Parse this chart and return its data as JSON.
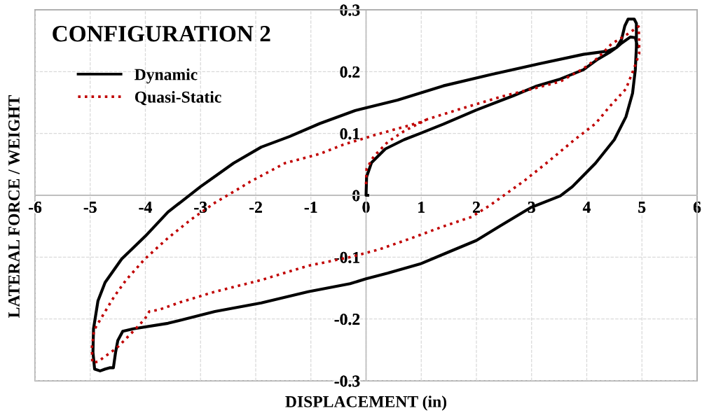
{
  "chart_data": {
    "type": "line",
    "title": "CONFIGURATION 2",
    "xlabel": "DISPLACEMENT (in)",
    "ylabel": "LATERAL FORCE / WEIGHT",
    "xlim": [
      -6,
      6
    ],
    "ylim": [
      -0.3,
      0.3
    ],
    "xticks": [
      -6,
      -5,
      -4,
      -3,
      -2,
      -1,
      0,
      1,
      2,
      3,
      4,
      5,
      6
    ],
    "yticks": [
      -0.3,
      -0.2,
      -0.1,
      0,
      0.1,
      0.2,
      0.3
    ],
    "grid": true,
    "legend": "top left",
    "marker": "none",
    "series": [
      {
        "name": "Dynamic",
        "color": "#000000",
        "line_style": "solid",
        "x": [
          0.03,
          0.0,
          0.01,
          0.1,
          0.35,
          0.69,
          0.98,
          1.4,
          2.0,
          2.67,
          3.1,
          3.52,
          3.94,
          4.2,
          4.41,
          4.54,
          4.63,
          4.69,
          4.75,
          4.86,
          4.9,
          4.9,
          4.88,
          4.83,
          4.71,
          4.5,
          4.16,
          3.74,
          3.52,
          2.98,
          2.42,
          2.0,
          1.49,
          0.98,
          0.39,
          0.0,
          -0.29,
          -1.05,
          -1.9,
          -2.74,
          -3.59,
          -4.22,
          -4.41,
          -4.5,
          -4.54,
          -4.58,
          -4.65,
          -4.73,
          -4.82,
          -4.92,
          -4.95,
          -4.94,
          -4.86,
          -4.73,
          -4.43,
          -4.0,
          -3.59,
          -3.0,
          -2.4,
          -1.9,
          -1.39,
          -0.84,
          -0.2,
          0.57,
          1.4,
          2.25,
          3.1,
          3.94,
          4.37,
          4.54,
          4.63,
          4.79,
          4.88,
          4.92
        ],
        "values": [
          0.0,
          0.0,
          0.03,
          0.053,
          0.075,
          0.09,
          0.1,
          0.115,
          0.138,
          0.161,
          0.177,
          0.188,
          0.203,
          0.22,
          0.231,
          0.239,
          0.252,
          0.274,
          0.285,
          0.285,
          0.278,
          0.24,
          0.203,
          0.165,
          0.127,
          0.09,
          0.052,
          0.014,
          -0.001,
          -0.02,
          -0.05,
          -0.073,
          -0.092,
          -0.111,
          -0.126,
          -0.135,
          -0.143,
          -0.156,
          -0.174,
          -0.188,
          -0.207,
          -0.216,
          -0.22,
          -0.235,
          -0.254,
          -0.279,
          -0.279,
          -0.281,
          -0.284,
          -0.281,
          -0.254,
          -0.216,
          -0.171,
          -0.141,
          -0.103,
          -0.066,
          -0.027,
          0.014,
          0.052,
          0.078,
          0.095,
          0.116,
          0.137,
          0.154,
          0.177,
          0.195,
          0.212,
          0.228,
          0.233,
          0.239,
          0.246,
          0.256,
          0.255,
          0.24
        ]
      },
      {
        "name": "Quasi-Static",
        "color": "#c00000",
        "line_style": "dotted",
        "x": [
          0.0,
          0.01,
          0.14,
          0.39,
          0.69,
          1.11,
          1.83,
          2.47,
          3.1,
          3.52,
          3.74,
          3.94,
          4.2,
          4.45,
          4.71,
          4.94,
          4.95,
          4.95,
          4.86,
          4.71,
          4.41,
          4.16,
          3.78,
          3.31,
          2.89,
          2.25,
          1.91,
          1.41,
          0.77,
          0.22,
          -0.29,
          -1.05,
          -1.9,
          -2.74,
          -3.37,
          -3.75,
          -3.93,
          -4.01,
          -4.22,
          -4.52,
          -4.86,
          -4.96,
          -4.97,
          -4.93,
          -4.77,
          -4.56,
          -4.35,
          -4.01,
          -3.59,
          -3.17,
          -2.74,
          -2.32,
          -2.1,
          -1.47,
          -0.84,
          -0.41,
          0.0,
          0.14,
          0.98,
          1.11
        ],
        "values": [
          0.018,
          0.043,
          0.063,
          0.086,
          0.104,
          0.123,
          0.143,
          0.16,
          0.174,
          0.184,
          0.195,
          0.205,
          0.222,
          0.245,
          0.259,
          0.273,
          0.251,
          0.229,
          0.206,
          0.172,
          0.143,
          0.116,
          0.09,
          0.055,
          0.025,
          -0.016,
          -0.035,
          -0.05,
          -0.071,
          -0.088,
          -0.1,
          -0.114,
          -0.137,
          -0.156,
          -0.173,
          -0.185,
          -0.188,
          -0.2,
          -0.22,
          -0.247,
          -0.269,
          -0.271,
          -0.247,
          -0.218,
          -0.194,
          -0.163,
          -0.137,
          -0.103,
          -0.069,
          -0.039,
          -0.012,
          0.01,
          0.022,
          0.052,
          0.067,
          0.082,
          0.093,
          0.097,
          0.118,
          0.123
        ]
      }
    ]
  }
}
